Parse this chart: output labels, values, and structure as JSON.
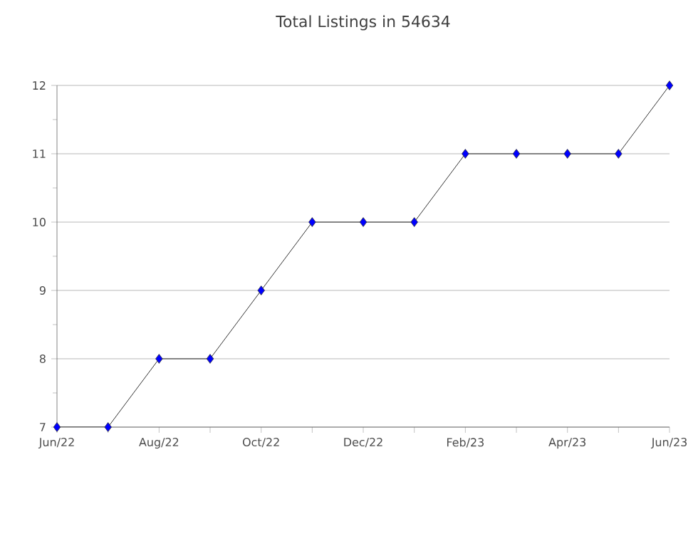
{
  "chart_data": {
    "type": "line",
    "title": "Total Listings in 54634",
    "categories": [
      "Jun/22",
      null,
      "Aug/22",
      null,
      "Oct/22",
      null,
      "Dec/22",
      null,
      "Feb/23",
      null,
      "Apr/23",
      null,
      "Jun/23"
    ],
    "series": [
      {
        "color": "#0000ff",
        "values": [
          7,
          7,
          8,
          8,
          9,
          10,
          10,
          10,
          11,
          11,
          11,
          11,
          12
        ]
      }
    ],
    "ylim": [
      7,
      12
    ],
    "yticks": [
      7,
      8,
      9,
      10,
      11,
      12
    ],
    "grid": "y",
    "marker": "diamond",
    "line_style": "solid"
  }
}
